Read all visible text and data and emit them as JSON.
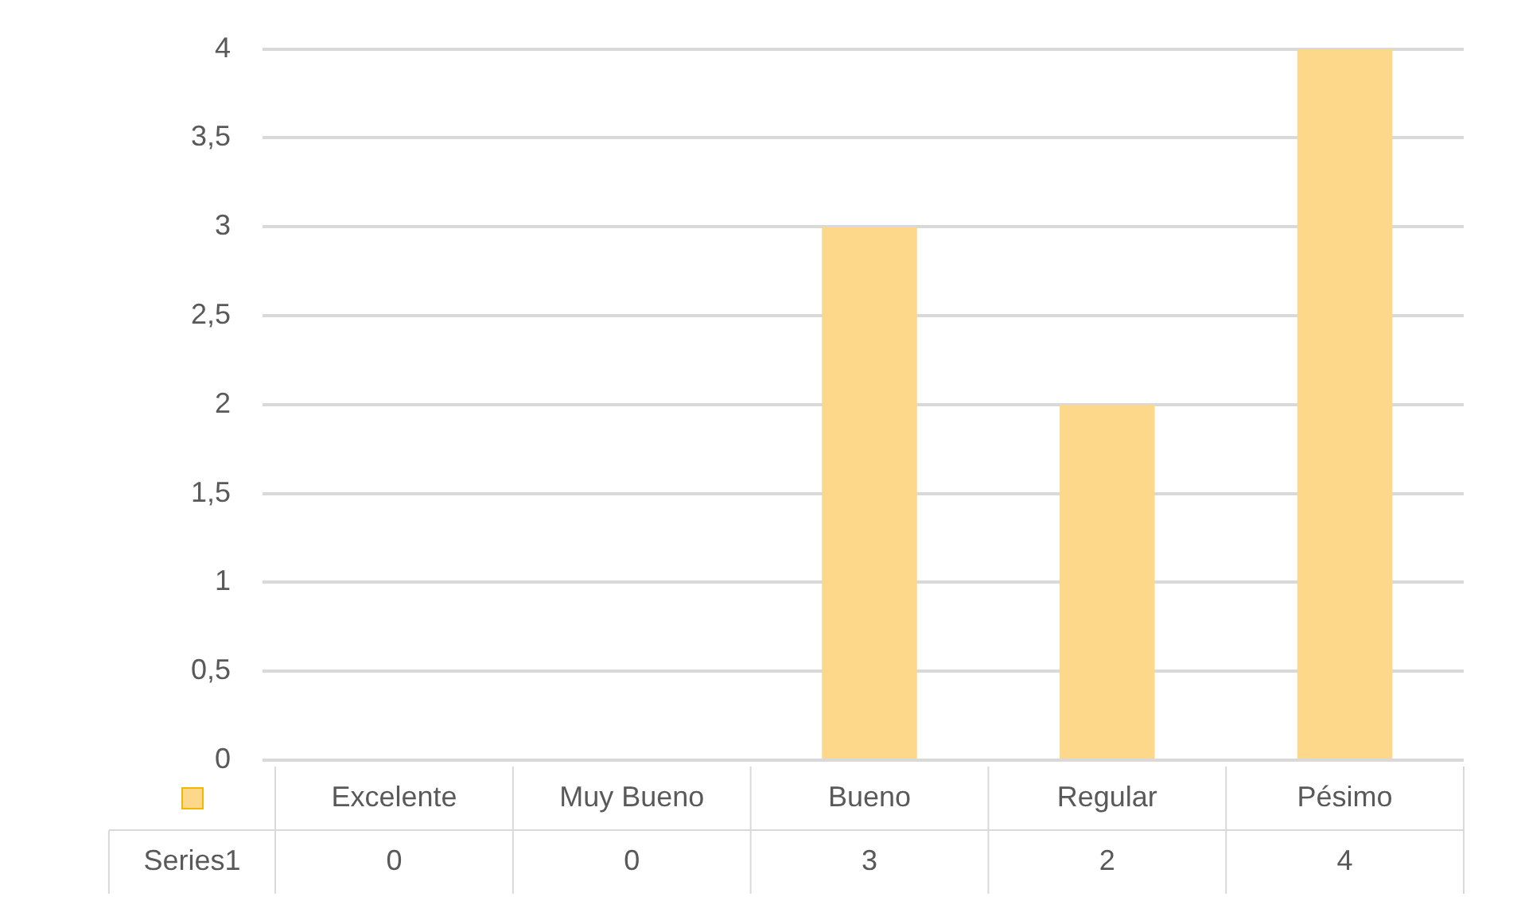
{
  "chart_data": {
    "type": "bar",
    "categories": [
      "Excelente",
      "Muy Bueno",
      "Bueno",
      "Regular",
      "Pésimo"
    ],
    "series": [
      {
        "name": "Series1",
        "color": "#fdd88a",
        "values": [
          0,
          0,
          3,
          2,
          4
        ]
      }
    ],
    "ylim": [
      0,
      4
    ],
    "yticks": [
      0,
      {
        "value": 0.5,
        "label": "0,5"
      },
      1,
      {
        "value": 1.5,
        "label": "1,5"
      },
      2,
      {
        "value": 2.5,
        "label": "2,5"
      },
      3,
      {
        "value": 3.5,
        "label": "3,5"
      },
      4
    ],
    "grid": "y",
    "data_labels": true
  }
}
